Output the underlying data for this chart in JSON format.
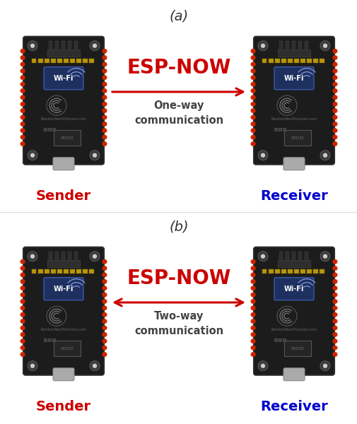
{
  "title_a": "(a)",
  "title_b": "(b)",
  "esp_now_label": "ESP-NOW",
  "one_way_label": "One-way\ncommunication",
  "two_way_label": "Two-way\ncommunication",
  "sender_label": "Sender",
  "receiver_label": "Receiver",
  "esp_now_color": "#cc0000",
  "sender_color": "#cc0000",
  "receiver_color": "#0000cc",
  "sub_label_color": "#444444",
  "arrow_color": "#cc0000",
  "bg_color": "#ffffff",
  "board_dark": "#1a1a1a",
  "pin_color": "#cc3300",
  "fig_width": 5.06,
  "fig_height": 6.0
}
